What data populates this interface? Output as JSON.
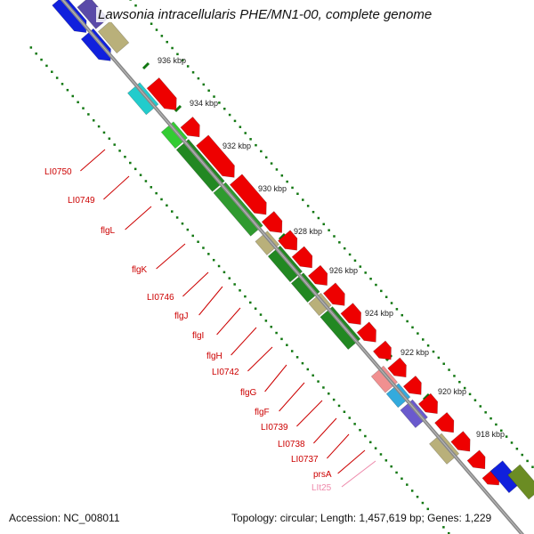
{
  "title": "Lawsonia intracellularis PHE/MN1-00, complete genome",
  "accession": "Accession: NC_008011",
  "summary": "Topology: circular; Length: 1,457,619 bp; Genes: 1,229",
  "ticks": [
    "936 kbp",
    "934 kbp",
    "932 kbp",
    "930 kbp",
    "928 kbp",
    "926 kbp",
    "924 kbp",
    "922 kbp",
    "920 kbp",
    "918 kbp"
  ],
  "gene_labels": [
    {
      "name": "LI0750",
      "color": "#cc0000"
    },
    {
      "name": "LI0749",
      "color": "#cc0000"
    },
    {
      "name": "flgL",
      "color": "#cc0000"
    },
    {
      "name": "flgK",
      "color": "#cc0000"
    },
    {
      "name": "LI0746",
      "color": "#cc0000"
    },
    {
      "name": "flgJ",
      "color": "#cc0000"
    },
    {
      "name": "flgI",
      "color": "#cc0000"
    },
    {
      "name": "flgH",
      "color": "#cc0000"
    },
    {
      "name": "LI0742",
      "color": "#cc0000"
    },
    {
      "name": "flgG",
      "color": "#cc0000"
    },
    {
      "name": "flgF",
      "color": "#cc0000"
    },
    {
      "name": "LI0739",
      "color": "#cc0000"
    },
    {
      "name": "LI0738",
      "color": "#cc0000"
    },
    {
      "name": "LI0737",
      "color": "#cc0000"
    },
    {
      "name": "prsA",
      "color": "#cc0000"
    },
    {
      "name": "LIt25",
      "color": "#ee88aa"
    }
  ],
  "colors": {
    "cds": "#ee0000",
    "cog_green": "#228822",
    "backbone": "#888888",
    "tick": "#117711"
  }
}
